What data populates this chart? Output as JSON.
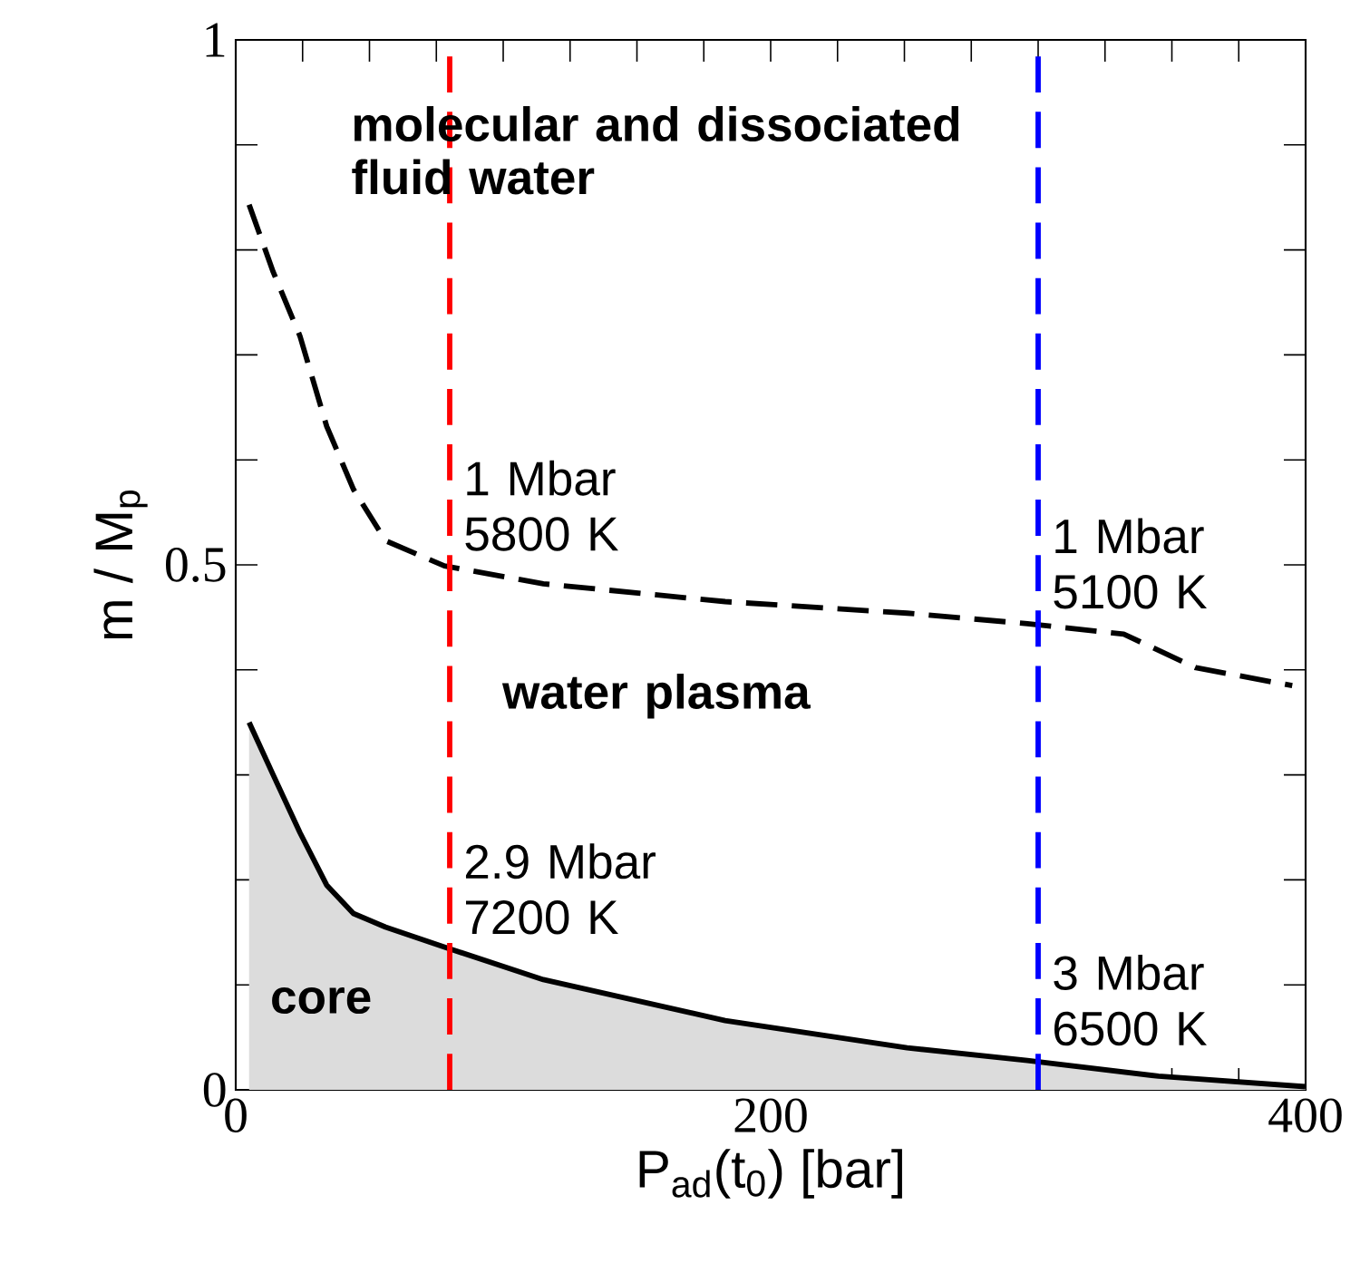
{
  "chart_data": {
    "type": "line",
    "xlabel": "P$_{ad}$(t$_{0}$)  [bar]",
    "ylabel": "m / M$_{p}$",
    "xlim": [
      0,
      400
    ],
    "ylim": [
      0,
      1
    ],
    "xticks": [
      0,
      {
        "value": 25,
        "label": null
      },
      {
        "value": 50,
        "label": null
      },
      {
        "value": 75,
        "label": null
      },
      {
        "value": 100,
        "label": null
      },
      {
        "value": 125,
        "label": null
      },
      {
        "value": 150,
        "label": null
      },
      {
        "value": 175,
        "label": null
      },
      200,
      {
        "value": 225,
        "label": null
      },
      {
        "value": 250,
        "label": null
      },
      {
        "value": 275,
        "label": null
      },
      {
        "value": 300,
        "label": null
      },
      {
        "value": 325,
        "label": null
      },
      {
        "value": 350,
        "label": null
      },
      {
        "value": 375,
        "label": null
      },
      400
    ],
    "yticks": [
      0,
      {
        "value": 0.1,
        "label": null
      },
      {
        "value": 0.2,
        "label": null
      },
      {
        "value": 0.3,
        "label": null
      },
      {
        "value": 0.4,
        "label": null
      },
      0.5,
      {
        "value": 0.6,
        "label": null
      },
      {
        "value": 0.7,
        "label": null
      },
      {
        "value": 0.8,
        "label": null
      },
      {
        "value": 0.9,
        "label": null
      },
      1
    ],
    "grid": false,
    "series": [
      {
        "color": "#000000",
        "line_style": "dashed",
        "x": [
          5,
          14,
          24,
          34,
          44,
          56,
          78,
          115,
          183,
          251,
          296,
          332,
          359,
          395
        ],
        "values": [
          0.843,
          0.779,
          0.718,
          0.632,
          0.572,
          0.523,
          0.499,
          0.482,
          0.465,
          0.454,
          0.444,
          0.434,
          0.402,
          0.385
        ]
      },
      {
        "type": "area",
        "color": "#dcdcdc",
        "x": [
          5,
          14,
          24,
          34,
          44,
          56,
          78,
          115,
          183,
          251,
          296,
          345,
          400
        ],
        "values": [
          0.35,
          0.3,
          0.245,
          0.195,
          0.168,
          0.155,
          0.136,
          0.105,
          0.066,
          0.04,
          0.028,
          0.013,
          0.003
        ]
      }
    ],
    "ref_lines": [
      {
        "axis": "x",
        "value": 80,
        "color": "#ff0000",
        "line_style": "dashed"
      },
      {
        "axis": "x",
        "value": 300,
        "color": "#0000ff",
        "line_style": "dashed"
      }
    ],
    "annotations": [
      "molecular and dissociated fluid water",
      "water plasma",
      "core",
      "1 Mbar 5800 K",
      "1 Mbar 5100 K",
      "2.9 Mbar 7200 K",
      "3 Mbar 6500 K"
    ]
  }
}
